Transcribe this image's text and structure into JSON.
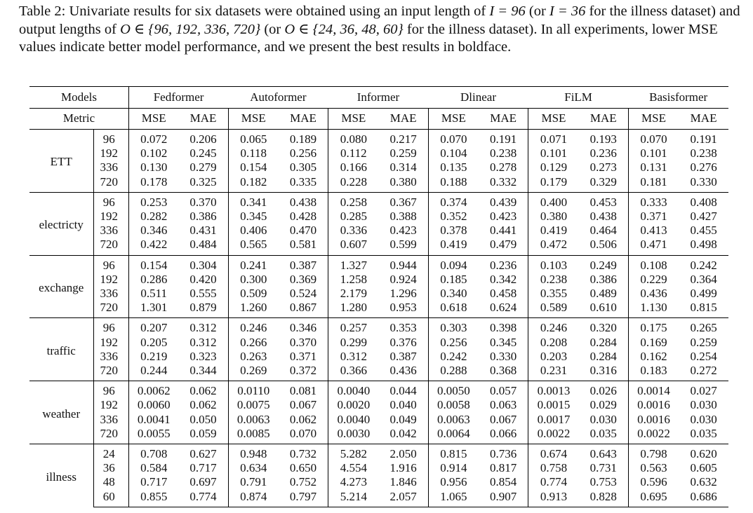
{
  "caption": {
    "label": "Table 2:",
    "part1": " Univariate results for six datasets were obtained using an input length of ",
    "input_len": "I = 96",
    "part2": " (or ",
    "input_len_illness": "I = 36",
    "part3": " for the illness dataset) and output lengths of ",
    "output_set": "O ∈ {96, 192, 336, 720}",
    "part4": " (or ",
    "output_set_illness": "O ∈ {24, 36, 48, 60}",
    "part5": " for the illness dataset). In all experiments, lower MSE values indicate better model performance, and we present the best results in boldface."
  },
  "table": {
    "models_label": "Models",
    "metric_label": "Metric",
    "models": [
      "Fedformer",
      "Autoformer",
      "Informer",
      "Dlinear",
      "FiLM",
      "Basisformer"
    ],
    "metrics": [
      "MSE",
      "MAE"
    ],
    "groups": [
      {
        "dataset": "ETT",
        "rows": [
          {
            "len": "96",
            "values": [
              "0.072",
              "0.206",
              "0.065",
              "0.189",
              "0.080",
              "0.217",
              "0.070",
              "0.191",
              "0.071",
              "0.193",
              "0.070",
              "0.191"
            ],
            "bold": [
              2,
              3
            ]
          },
          {
            "len": "192",
            "values": [
              "0.102",
              "0.245",
              "0.118",
              "0.256",
              "0.112",
              "0.259",
              "0.104",
              "0.238",
              "0.101",
              "0.236",
              "0.101",
              "0.238"
            ],
            "bold": [
              9,
              10
            ]
          },
          {
            "len": "336",
            "values": [
              "0.130",
              "0.279",
              "0.154",
              "0.305",
              "0.166",
              "0.314",
              "0.135",
              "0.278",
              "0.129",
              "0.273",
              "0.131",
              "0.276"
            ],
            "bold": [
              8,
              9
            ]
          },
          {
            "len": "720",
            "values": [
              "0.178",
              "0.325",
              "0.182",
              "0.335",
              "0.228",
              "0.380",
              "0.188",
              "0.332",
              "0.179",
              "0.329",
              "0.181",
              "0.330"
            ],
            "bold": [
              0,
              1
            ]
          }
        ]
      },
      {
        "dataset": "electricty",
        "rows": [
          {
            "len": "96",
            "values": [
              "0.253",
              "0.370",
              "0.341",
              "0.438",
              "0.258",
              "0.367",
              "0.374",
              "0.439",
              "0.400",
              "0.453",
              "0.333",
              "0.408"
            ],
            "bold": [
              0,
              5
            ]
          },
          {
            "len": "192",
            "values": [
              "0.282",
              "0.386",
              "0.345",
              "0.428",
              "0.285",
              "0.388",
              "0.352",
              "0.423",
              "0.380",
              "0.438",
              "0.371",
              "0.427"
            ],
            "bold": [
              0,
              1
            ]
          },
          {
            "len": "336",
            "values": [
              "0.346",
              "0.431",
              "0.406",
              "0.470",
              "0.336",
              "0.423",
              "0.378",
              "0.441",
              "0.419",
              "0.464",
              "0.413",
              "0.455"
            ],
            "bold": [
              0,
              5
            ]
          },
          {
            "len": "720",
            "values": [
              "0.422",
              "0.484",
              "0.565",
              "0.581",
              "0.607",
              "0.599",
              "0.419",
              "0.479",
              "0.472",
              "0.506",
              "0.471",
              "0.498"
            ],
            "bold": [
              0,
              1
            ]
          }
        ]
      },
      {
        "dataset": "exchange",
        "rows": [
          {
            "len": "96",
            "values": [
              "0.154",
              "0.304",
              "0.241",
              "0.387",
              "1.327",
              "0.944",
              "0.094",
              "0.236",
              "0.103",
              "0.249",
              "0.108",
              "0.242"
            ],
            "bold": [
              6,
              7
            ]
          },
          {
            "len": "192",
            "values": [
              "0.286",
              "0.420",
              "0.300",
              "0.369",
              "1.258",
              "0.924",
              "0.185",
              "0.342",
              "0.238",
              "0.386",
              "0.229",
              "0.364"
            ],
            "bold": [
              6,
              7
            ]
          },
          {
            "len": "336",
            "values": [
              "0.511",
              "0.555",
              "0.509",
              "0.524",
              "2.179",
              "1.296",
              "0.340",
              "0.458",
              "0.355",
              "0.489",
              "0.436",
              "0.499"
            ],
            "bold": [
              6,
              7
            ]
          },
          {
            "len": "720",
            "values": [
              "1.301",
              "0.879",
              "1.260",
              "0.867",
              "1.280",
              "0.953",
              "0.618",
              "0.624",
              "0.589",
              "0.610",
              "1.130",
              "0.815"
            ],
            "bold": [
              8,
              9
            ]
          }
        ]
      },
      {
        "dataset": "traffic",
        "rows": [
          {
            "len": "96",
            "values": [
              "0.207",
              "0.312",
              "0.246",
              "0.346",
              "0.257",
              "0.353",
              "0.303",
              "0.398",
              "0.246",
              "0.320",
              "0.175",
              "0.265"
            ],
            "bold": [
              10,
              11
            ]
          },
          {
            "len": "192",
            "values": [
              "0.205",
              "0.312",
              "0.266",
              "0.370",
              "0.299",
              "0.376",
              "0.256",
              "0.345",
              "0.208",
              "0.284",
              "0.169",
              "0.259"
            ],
            "bold": [
              10,
              11
            ]
          },
          {
            "len": "336",
            "values": [
              "0.219",
              "0.323",
              "0.263",
              "0.371",
              "0.312",
              "0.387",
              "0.242",
              "0.330",
              "0.203",
              "0.284",
              "0.162",
              "0.254"
            ],
            "bold": [
              10,
              11
            ]
          },
          {
            "len": "720",
            "values": [
              "0.244",
              "0.344",
              "0.269",
              "0.372",
              "0.366",
              "0.436",
              "0.288",
              "0.368",
              "0.231",
              "0.316",
              "0.183",
              "0.272"
            ],
            "bold": [
              10,
              11
            ]
          }
        ]
      },
      {
        "dataset": "weather",
        "rows": [
          {
            "len": "96",
            "values": [
              "0.0062",
              "0.062",
              "0.0110",
              "0.081",
              "0.0040",
              "0.044",
              "0.0050",
              "0.057",
              "0.0013",
              "0.026",
              "0.0014",
              "0.027"
            ],
            "bold": [
              8,
              9
            ]
          },
          {
            "len": "192",
            "values": [
              "0.0060",
              "0.062",
              "0.0075",
              "0.067",
              "0.0020",
              "0.040",
              "0.0058",
              "0.063",
              "0.0015",
              "0.029",
              "0.0016",
              "0.030"
            ],
            "bold": [
              8,
              9
            ]
          },
          {
            "len": "336",
            "values": [
              "0.0041",
              "0.050",
              "0.0063",
              "0.062",
              "0.0040",
              "0.049",
              "0.0063",
              "0.067",
              "0.0017",
              "0.030",
              "0.0016",
              "0.030"
            ],
            "bold": [
              10,
              11
            ]
          },
          {
            "len": "720",
            "values": [
              "0.0055",
              "0.059",
              "0.0085",
              "0.070",
              "0.0030",
              "0.042",
              "0.0064",
              "0.066",
              "0.0022",
              "0.035",
              "0.0022",
              "0.035"
            ],
            "bold": [
              10,
              11
            ]
          }
        ]
      },
      {
        "dataset": "illness",
        "rows": [
          {
            "len": "24",
            "values": [
              "0.708",
              "0.627",
              "0.948",
              "0.732",
              "5.282",
              "2.050",
              "0.815",
              "0.736",
              "0.674",
              "0.643",
              "0.798",
              "0.620"
            ],
            "bold": [
              8,
              11
            ]
          },
          {
            "len": "36",
            "values": [
              "0.584",
              "0.717",
              "0.634",
              "0.650",
              "4.554",
              "1.916",
              "0.914",
              "0.817",
              "0.758",
              "0.731",
              "0.563",
              "0.605"
            ],
            "bold": [
              10,
              11
            ]
          },
          {
            "len": "48",
            "values": [
              "0.717",
              "0.697",
              "0.791",
              "0.752",
              "4.273",
              "1.846",
              "0.956",
              "0.854",
              "0.774",
              "0.753",
              "0.596",
              "0.632"
            ],
            "bold": [
              10,
              11
            ]
          },
          {
            "len": "60",
            "values": [
              "0.855",
              "0.774",
              "0.874",
              "0.797",
              "5.214",
              "2.057",
              "1.065",
              "0.907",
              "0.913",
              "0.828",
              "0.695",
              "0.686"
            ],
            "bold": [
              10,
              11
            ]
          }
        ]
      }
    ]
  }
}
